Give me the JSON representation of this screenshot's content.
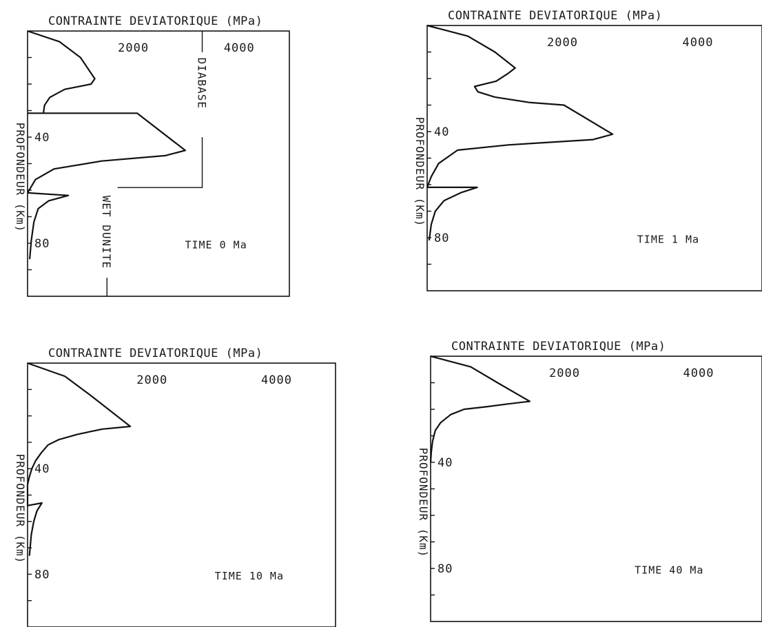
{
  "chart_data": [
    {
      "type": "line",
      "title": "CONTRAINTE DEVIATORIQUE (MPa)",
      "ylabel": "PROFONDEUR (Km)",
      "annotation": "TIME 0 Ma",
      "xticks": [
        "2000",
        "4000"
      ],
      "yticks": [
        "40",
        "80"
      ],
      "xlim": [
        0,
        4600
      ],
      "ylim": [
        0,
        100
      ],
      "y_inverted": true,
      "layer_labels": [
        "DIABASE",
        "WET DUNITE"
      ],
      "series": [
        {
          "x": [
            0,
            600,
            1000,
            1270,
            1200,
            700,
            420,
            320,
            300
          ],
          "y": [
            0,
            4,
            10,
            18,
            20,
            22,
            25,
            28,
            31
          ]
        },
        {
          "x": [
            0,
            2070,
            2980,
            2600,
            1400,
            500,
            150,
            0
          ],
          "y": [
            31,
            31,
            45,
            47,
            49,
            52,
            56,
            61
          ]
        },
        {
          "x": [
            0,
            770,
            400,
            200,
            120,
            70,
            40
          ],
          "y": [
            61,
            62,
            64,
            67,
            72,
            79,
            86
          ]
        }
      ]
    },
    {
      "type": "line",
      "title": "CONTRAINTE DEVIATORIQUE (MPa)",
      "ylabel": "PROFONDEUR (Km)",
      "annotation": "TIME 1 Ma",
      "xticks": [
        "2000",
        "4000"
      ],
      "yticks": [
        "40",
        "80"
      ],
      "xlim": [
        0,
        4600
      ],
      "ylim": [
        0,
        100
      ],
      "y_inverted": true,
      "series": [
        {
          "x": [
            0,
            600,
            1000,
            1300,
            1200,
            1020,
            700,
            750,
            1000,
            1500,
            2020,
            2740,
            2450,
            1200,
            450,
            170,
            60,
            0
          ],
          "y": [
            0,
            4,
            10,
            16,
            18,
            21,
            23,
            25,
            27,
            29,
            30,
            41,
            43,
            45,
            47,
            52,
            57,
            61
          ]
        },
        {
          "x": [
            0,
            740,
            500,
            250,
            120,
            60,
            30
          ],
          "y": [
            61,
            61,
            63,
            66,
            70,
            75,
            81
          ]
        }
      ]
    },
    {
      "type": "line",
      "title": "CONTRAINTE DEVIATORIQUE (MPa)",
      "ylabel": "PROFONDEUR (Km)",
      "annotation": "TIME 10 Ma",
      "xticks": [
        "2000",
        "4000"
      ],
      "yticks": [
        "40",
        "80"
      ],
      "xlim": [
        0,
        4600
      ],
      "ylim": [
        0,
        100
      ],
      "y_inverted": true,
      "series": [
        {
          "x": [
            0,
            600,
            1000,
            1650,
            1200,
            800,
            500,
            330,
            220,
            130,
            70,
            30,
            0
          ],
          "y": [
            0,
            5,
            12,
            24,
            25,
            27,
            29,
            31,
            34,
            37,
            40,
            43,
            46
          ]
        },
        {
          "x": [
            0,
            0,
            230,
            150,
            100,
            60,
            30
          ],
          "y": [
            46,
            54,
            53,
            56,
            60,
            65,
            73
          ]
        }
      ]
    },
    {
      "type": "line",
      "title": "CONTRAINTE DEVIATORIQUE (MPa)",
      "ylabel": "PROFONDEUR (Km)",
      "annotation": "TIME 40 Ma",
      "xticks": [
        "2000",
        "4000"
      ],
      "yticks": [
        "40",
        "80"
      ],
      "xlim": [
        0,
        4600
      ],
      "ylim": [
        0,
        100
      ],
      "y_inverted": true,
      "series": [
        {
          "x": [
            0,
            600,
            1000,
            1480,
            1150,
            850,
            500,
            300,
            150,
            70,
            30,
            10,
            0
          ],
          "y": [
            0,
            4,
            10,
            17,
            18,
            19,
            20,
            22,
            25,
            28,
            32,
            36,
            40
          ]
        }
      ]
    }
  ]
}
